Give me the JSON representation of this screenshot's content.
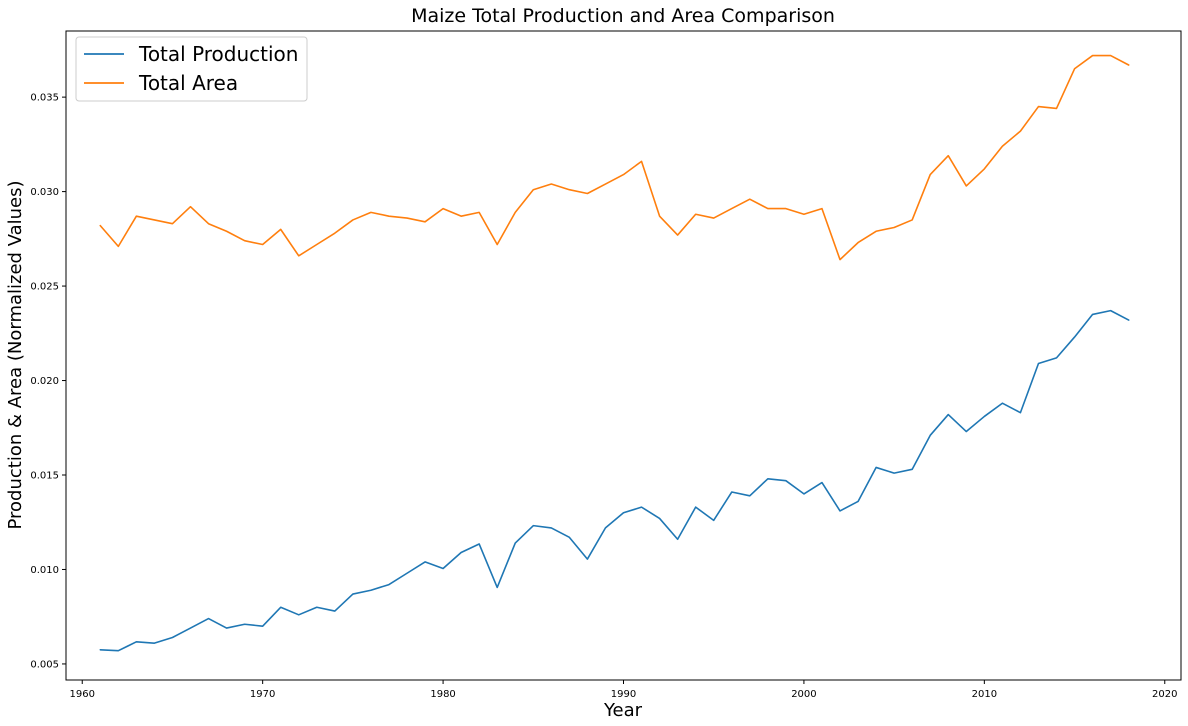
{
  "chart_data": {
    "type": "line",
    "title": "Maize Total Production and Area Comparison",
    "xlabel": "Year",
    "ylabel": "Production & Area (Normalized Values)",
    "xlim": [
      1959.1,
      2020.9
    ],
    "ylim": [
      0.00415,
      0.0385
    ],
    "x_ticks": [
      1960,
      1970,
      1980,
      1990,
      2000,
      2010,
      2020
    ],
    "y_ticks": [
      0.005,
      0.01,
      0.015,
      0.02,
      0.025,
      0.03,
      0.035
    ],
    "y_tick_labels": [
      "0.005",
      "0.010",
      "0.015",
      "0.020",
      "0.025",
      "0.030",
      "0.035"
    ],
    "grid": false,
    "legend_position": "top-left",
    "x": [
      1961,
      1962,
      1963,
      1964,
      1965,
      1966,
      1967,
      1968,
      1969,
      1970,
      1971,
      1972,
      1973,
      1974,
      1975,
      1976,
      1977,
      1978,
      1979,
      1980,
      1981,
      1982,
      1983,
      1984,
      1985,
      1986,
      1987,
      1988,
      1989,
      1990,
      1991,
      1992,
      1993,
      1994,
      1995,
      1996,
      1997,
      1998,
      1999,
      2000,
      2001,
      2002,
      2003,
      2004,
      2005,
      2006,
      2007,
      2008,
      2009,
      2010,
      2011,
      2012,
      2013,
      2014,
      2015,
      2016,
      2017,
      2018
    ],
    "series": [
      {
        "name": "Total Production",
        "color": "#1f77b4",
        "values": [
          0.00575,
          0.0057,
          0.00617,
          0.0061,
          0.0064,
          0.0069,
          0.0074,
          0.0069,
          0.0071,
          0.007,
          0.008,
          0.0076,
          0.008,
          0.0078,
          0.0087,
          0.0089,
          0.0092,
          0.0098,
          0.0104,
          0.01005,
          0.0109,
          0.01135,
          0.00905,
          0.0114,
          0.01232,
          0.0122,
          0.0117,
          0.01055,
          0.0122,
          0.013,
          0.0133,
          0.0127,
          0.0116,
          0.0133,
          0.0126,
          0.0141,
          0.0139,
          0.0148,
          0.0147,
          0.014,
          0.0146,
          0.0131,
          0.0136,
          0.0154,
          0.0151,
          0.0153,
          0.0171,
          0.0182,
          0.0173,
          0.0181,
          0.0188,
          0.0183,
          0.0209,
          0.0212,
          0.0223,
          0.0235,
          0.0237,
          0.0232
        ]
      },
      {
        "name": "Total Area",
        "color": "#ff7f0e",
        "values": [
          0.0282,
          0.0271,
          0.0287,
          0.0285,
          0.0283,
          0.0292,
          0.0283,
          0.0279,
          0.0274,
          0.0272,
          0.028,
          0.0266,
          0.0272,
          0.0278,
          0.0285,
          0.0289,
          0.0287,
          0.0286,
          0.0284,
          0.0291,
          0.0287,
          0.0289,
          0.0272,
          0.0289,
          0.0301,
          0.0304,
          0.0301,
          0.0299,
          0.0304,
          0.0309,
          0.0316,
          0.0287,
          0.0277,
          0.0288,
          0.0286,
          0.0291,
          0.0296,
          0.0291,
          0.0291,
          0.0288,
          0.0291,
          0.0264,
          0.0273,
          0.0279,
          0.0281,
          0.0285,
          0.0309,
          0.0319,
          0.0303,
          0.0312,
          0.0324,
          0.0332,
          0.0345,
          0.0344,
          0.0365,
          0.0372,
          0.0372,
          0.0367
        ]
      }
    ]
  }
}
